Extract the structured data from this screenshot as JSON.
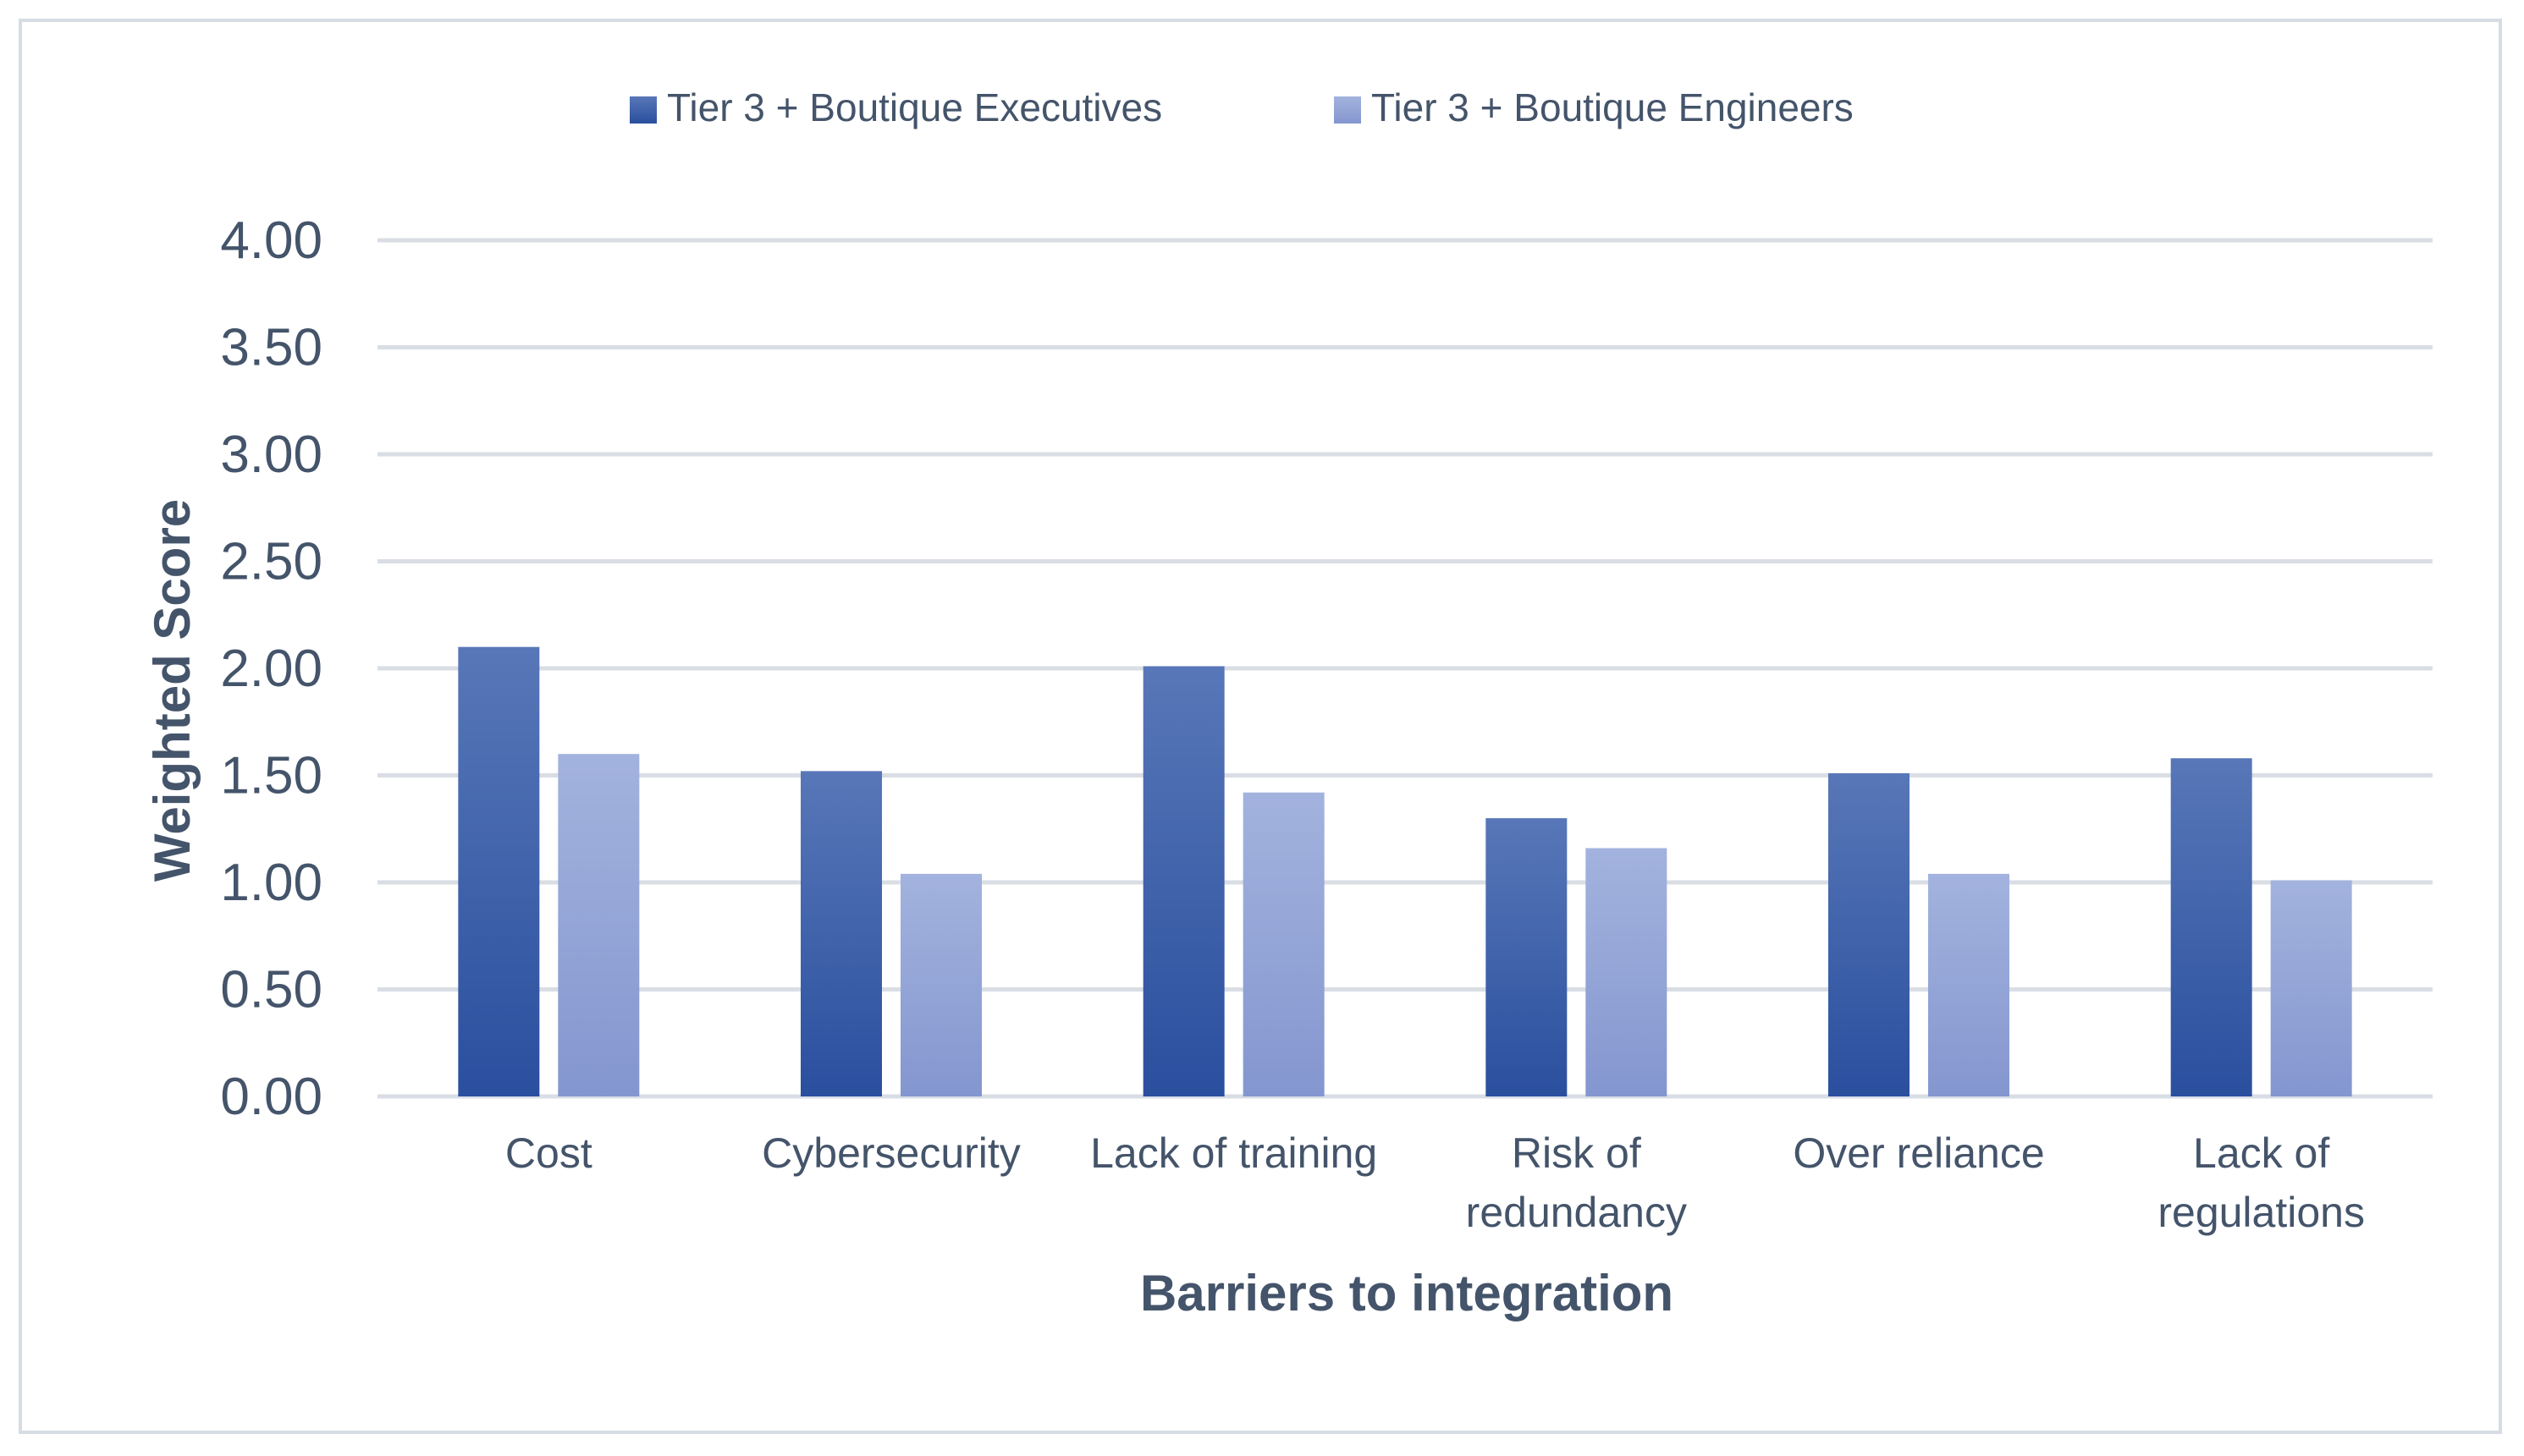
{
  "chart_data": {
    "type": "bar",
    "title": "",
    "xlabel": "Barriers to integration",
    "ylabel": "Weighted Score",
    "categories": [
      [
        "Cost"
      ],
      [
        "Cybersecurity"
      ],
      [
        "Lack of training"
      ],
      [
        "Risk of",
        "redundancy"
      ],
      [
        "Over reliance"
      ],
      [
        "Lack of",
        "regulations"
      ]
    ],
    "series": [
      {
        "name": "Tier 3 + Boutique Executives",
        "values": [
          2.1,
          1.52,
          2.01,
          1.3,
          1.51,
          1.58
        ]
      },
      {
        "name": "Tier 3 + Boutique Engineers",
        "values": [
          1.6,
          1.04,
          1.42,
          1.16,
          1.04,
          1.01
        ]
      }
    ],
    "ylim": [
      0,
      4
    ],
    "yticks": [
      "0.00",
      "0.50",
      "1.00",
      "1.50",
      "2.00",
      "2.50",
      "3.00",
      "3.50",
      "4.00"
    ],
    "grid": true,
    "legend": "top-center",
    "colors": {
      "exec_top": "#5877b8",
      "exec_bottom": "#2a4f9e",
      "eng_top": "#a3b3de",
      "eng_bottom": "#8496cf",
      "grid": "#d9dee5",
      "text": "#44546a"
    }
  }
}
